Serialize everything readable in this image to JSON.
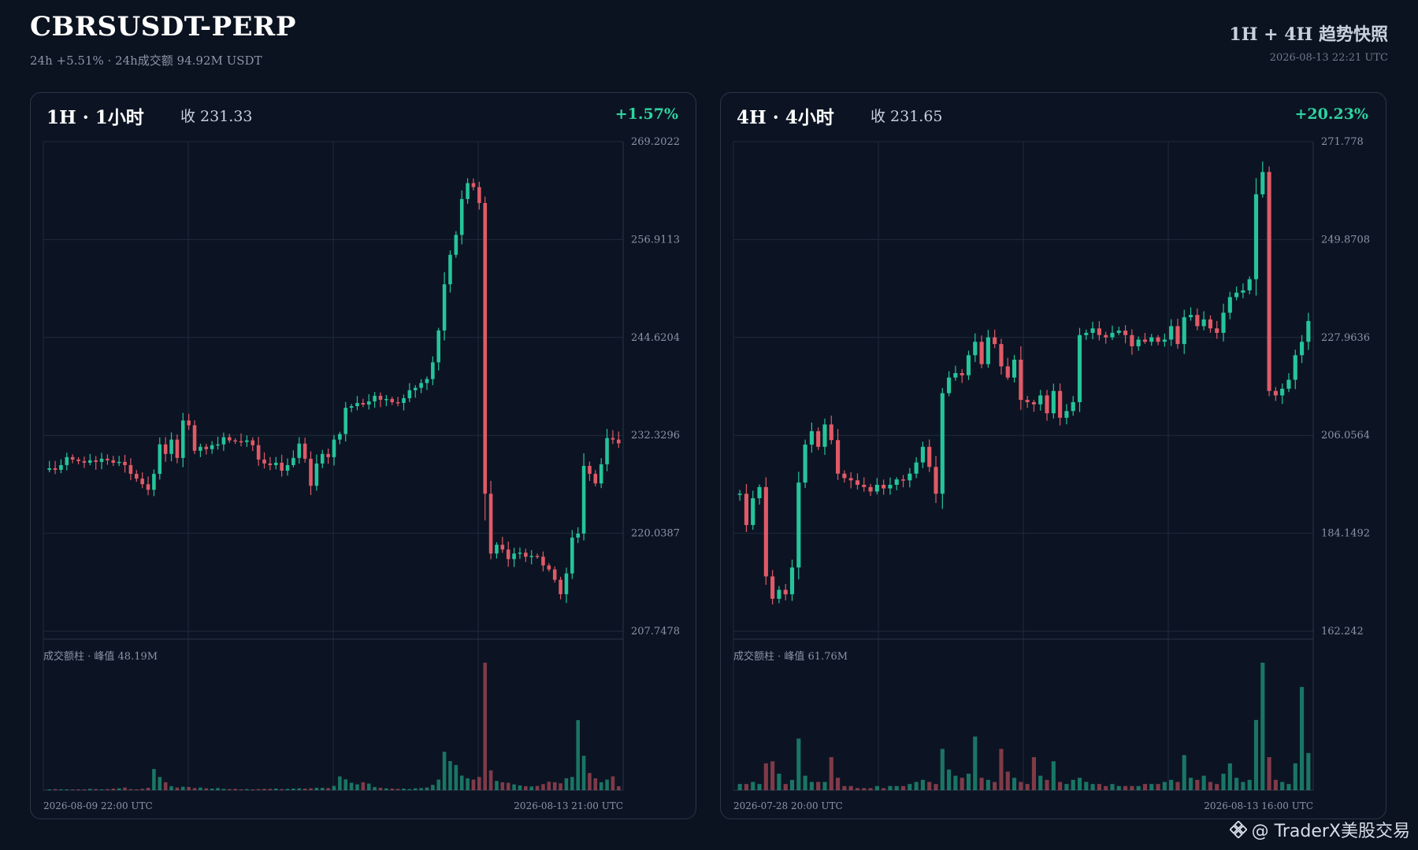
{
  "header": {
    "title": "CBRSUSDT-PERP",
    "subtitle": "24h +5.51% · 24h成交额 94.92M USDT",
    "right_title": "1H + 4H 趋势快照",
    "timestamp": "2026-08-13 22:21 UTC"
  },
  "watermark": {
    "text": "@ TraderX美股交易",
    "icon": "binance-diamond-icon"
  },
  "colors": {
    "up": "#26c49b",
    "down": "#e05a67",
    "grid": "#1f2a3b",
    "background": "#0c1423"
  },
  "chart_data": [
    {
      "type": "candlestick",
      "title": "1H · 1小时",
      "close_label": "收 231.33",
      "change_label": "+1.57%",
      "y_ticks": [
        "269.2022",
        "256.9113",
        "244.6204",
        "232.3296",
        "220.0387",
        "207.7478"
      ],
      "ylim": [
        207.7478,
        269.2022
      ],
      "x_start_label": "2026-08-09 22:00 UTC",
      "x_end_label": "2026-08-13 21:00 UTC",
      "volume_label": "成交额柱 · 峰值 48.19M",
      "volume_peak": 48.19,
      "closes": [
        228.2,
        228.0,
        228.6,
        229.6,
        229.3,
        229.1,
        228.9,
        229.2,
        229.0,
        229.4,
        229.2,
        228.9,
        229.0,
        228.6,
        227.5,
        226.9,
        226.2,
        225.5,
        227.5,
        231.2,
        230.0,
        231.8,
        229.5,
        234.2,
        233.6,
        230.4,
        230.9,
        230.6,
        231.1,
        231.2,
        232.1,
        231.7,
        231.6,
        231.5,
        231.7,
        231.1,
        229.3,
        228.8,
        228.6,
        228.9,
        227.9,
        228.6,
        229.5,
        231.3,
        229.4,
        226.0,
        228.8,
        230.0,
        229.6,
        231.8,
        232.5,
        235.8,
        236.0,
        236.4,
        236.2,
        236.6,
        237.3,
        236.8,
        236.9,
        236.5,
        236.4,
        237.0,
        238.0,
        238.3,
        238.9,
        239.4,
        241.5,
        245.5,
        251.3,
        255.0,
        257.5,
        262.0,
        264.0,
        263.5,
        261.5,
        225.0,
        217.5,
        218.6,
        218.0,
        216.8,
        217.5,
        217.6,
        217.1,
        217.2,
        217.1,
        216.0,
        215.5,
        214.2,
        212.4,
        215.0,
        219.5,
        220.0,
        228.5,
        227.5,
        226.3,
        228.7,
        232.0,
        231.8,
        231.33
      ],
      "volumes": [
        0.3,
        0.4,
        0.2,
        0.2,
        0.2,
        0.3,
        0.2,
        0.5,
        0.4,
        0.3,
        0.4,
        0.6,
        0.7,
        1.0,
        0.4,
        0.3,
        0.5,
        0.9,
        8.0,
        5.0,
        3.0,
        1.5,
        1.0,
        1.3,
        1.2,
        0.8,
        1.0,
        0.7,
        0.6,
        0.8,
        0.5,
        0.4,
        0.5,
        0.3,
        0.4,
        0.3,
        0.4,
        0.5,
        0.5,
        0.6,
        0.4,
        0.5,
        0.6,
        0.7,
        0.6,
        0.7,
        0.9,
        0.9,
        0.8,
        1.6,
        5.2,
        4.1,
        2.8,
        2.2,
        3.0,
        2.5,
        1.2,
        0.9,
        0.7,
        0.6,
        0.5,
        0.6,
        0.4,
        0.7,
        0.8,
        1.0,
        2.0,
        4.0,
        14.5,
        11.0,
        9.5,
        5.5,
        4.5,
        4.0,
        5.0,
        48.19,
        7.5,
        3.5,
        3.0,
        2.8,
        2.2,
        1.8,
        1.5,
        1.4,
        1.6,
        2.3,
        3.2,
        3.0,
        2.6,
        4.5,
        5.0,
        26.5,
        13.0,
        6.5,
        4.5,
        3.0,
        4.0,
        5.2,
        1.5
      ]
    },
    {
      "type": "candlestick",
      "title": "4H · 4小时",
      "close_label": "收 231.65",
      "change_label": "+20.23%",
      "y_ticks": [
        "271.778",
        "249.8708",
        "227.9636",
        "206.0564",
        "184.1492",
        "162.242"
      ],
      "ylim": [
        162.242,
        271.778
      ],
      "x_start_label": "2026-07-28 20:00 UTC",
      "x_end_label": "2026-08-13 16:00 UTC",
      "volume_label": "成交额柱 · 峰值 61.76M",
      "volume_peak": 61.76,
      "closes": [
        193.0,
        186.0,
        192.0,
        194.5,
        174.5,
        169.5,
        171.5,
        170.5,
        176.5,
        195.5,
        204.0,
        207.0,
        203.5,
        208.5,
        205.0,
        197.5,
        196.5,
        196.0,
        195.0,
        194.5,
        193.5,
        195.0,
        194.2,
        195.0,
        196.2,
        196.0,
        197.5,
        200.0,
        203.5,
        199.0,
        193.0,
        215.5,
        219.0,
        220.0,
        219.5,
        224.0,
        227.0,
        222.0,
        228.0,
        226.5,
        221.5,
        219.0,
        223.0,
        214.0,
        213.5,
        213.0,
        215.0,
        211.0,
        216.0,
        210.0,
        211.5,
        213.5,
        228.5,
        229.0,
        230.0,
        228.5,
        228.0,
        229.0,
        229.5,
        228.5,
        226.0,
        227.5,
        227.0,
        228.0,
        227.0,
        227.5,
        230.5,
        226.5,
        232.5,
        233.0,
        230.5,
        232.0,
        230.0,
        229.0,
        233.5,
        237.0,
        238.0,
        238.5,
        241.0,
        260.0,
        265.0,
        216.0,
        215.0,
        216.5,
        218.5,
        224.0,
        227.0,
        231.65
      ],
      "volumes": [
        3,
        3,
        4,
        3,
        13,
        14,
        8,
        3,
        5,
        25,
        7,
        4,
        4,
        4,
        16,
        6,
        2,
        2,
        1,
        1,
        1,
        2,
        1,
        2,
        2,
        2,
        3,
        4,
        5,
        4,
        3,
        20,
        10,
        7,
        6,
        8,
        26,
        6,
        5,
        4,
        20,
        9,
        6,
        4,
        3,
        16,
        7,
        5,
        14,
        4,
        3,
        5,
        6,
        4,
        3,
        3,
        2,
        3,
        2,
        2,
        2,
        2,
        3,
        3,
        3,
        4,
        5,
        4,
        17,
        6,
        5,
        7,
        4,
        3,
        8,
        13,
        6,
        4,
        5,
        34,
        61.76,
        16,
        5,
        4,
        3,
        13,
        50,
        18
      ]
    }
  ]
}
